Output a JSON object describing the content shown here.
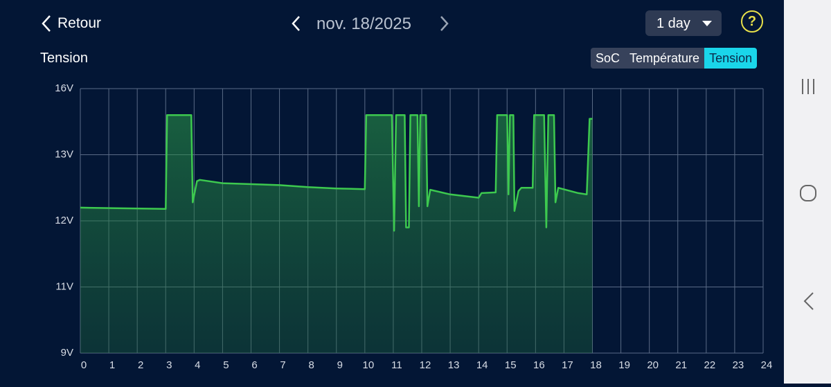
{
  "header": {
    "back": "Retour",
    "date": "nov. 18/2025",
    "range": "1 day",
    "help": "?"
  },
  "tabs": [
    "SoC",
    "Température",
    "Tension"
  ],
  "chart_data": {
    "type": "line",
    "title": "Tension",
    "xlim": [
      0,
      24
    ],
    "xticks": [
      0,
      1,
      2,
      3,
      4,
      5,
      6,
      7,
      8,
      9,
      10,
      11,
      12,
      13,
      14,
      15,
      16,
      17,
      18,
      19,
      20,
      21,
      22,
      23,
      24
    ],
    "ylim": [
      9,
      16
    ],
    "yticks": [
      {
        "value": 9,
        "label": "9V"
      },
      {
        "value": 11,
        "label": "11V"
      },
      {
        "value": 12,
        "label": "12V"
      },
      {
        "value": 13,
        "label": "13V"
      },
      {
        "value": 16,
        "label": "16V"
      }
    ],
    "grid": true,
    "series": [
      {
        "name": "Tension",
        "color": "#3dc94f",
        "x": [
          0,
          1.5,
          3.0,
          3.05,
          3.9,
          3.95,
          4.1,
          4.2,
          5,
          7,
          8,
          9,
          10,
          10.05,
          10.95,
          11.03,
          11.1,
          11.4,
          11.45,
          11.55,
          11.6,
          11.85,
          11.9,
          11.95,
          12.15,
          12.2,
          12.3,
          13,
          14,
          14.1,
          14.6,
          14.65,
          15.0,
          15.05,
          15.1,
          15.22,
          15.26,
          15.4,
          15.5,
          15.9,
          15.95,
          16.3,
          16.38,
          16.45,
          16.65,
          16.7,
          16.8,
          17.5,
          17.8,
          17.9,
          18.0
        ],
        "values": [
          12.2,
          12.19,
          12.18,
          14.8,
          14.8,
          12.28,
          12.6,
          12.62,
          12.57,
          12.54,
          12.51,
          12.49,
          12.48,
          14.8,
          14.8,
          11.85,
          14.8,
          14.8,
          11.9,
          11.9,
          14.8,
          14.8,
          12.22,
          14.8,
          14.8,
          12.22,
          12.47,
          12.4,
          12.35,
          12.42,
          12.43,
          14.8,
          14.8,
          12.4,
          14.8,
          14.8,
          12.15,
          12.45,
          12.5,
          12.5,
          14.8,
          14.8,
          11.9,
          14.8,
          14.8,
          12.28,
          12.5,
          12.42,
          12.4,
          14.63,
          14.63
        ]
      }
    ]
  }
}
